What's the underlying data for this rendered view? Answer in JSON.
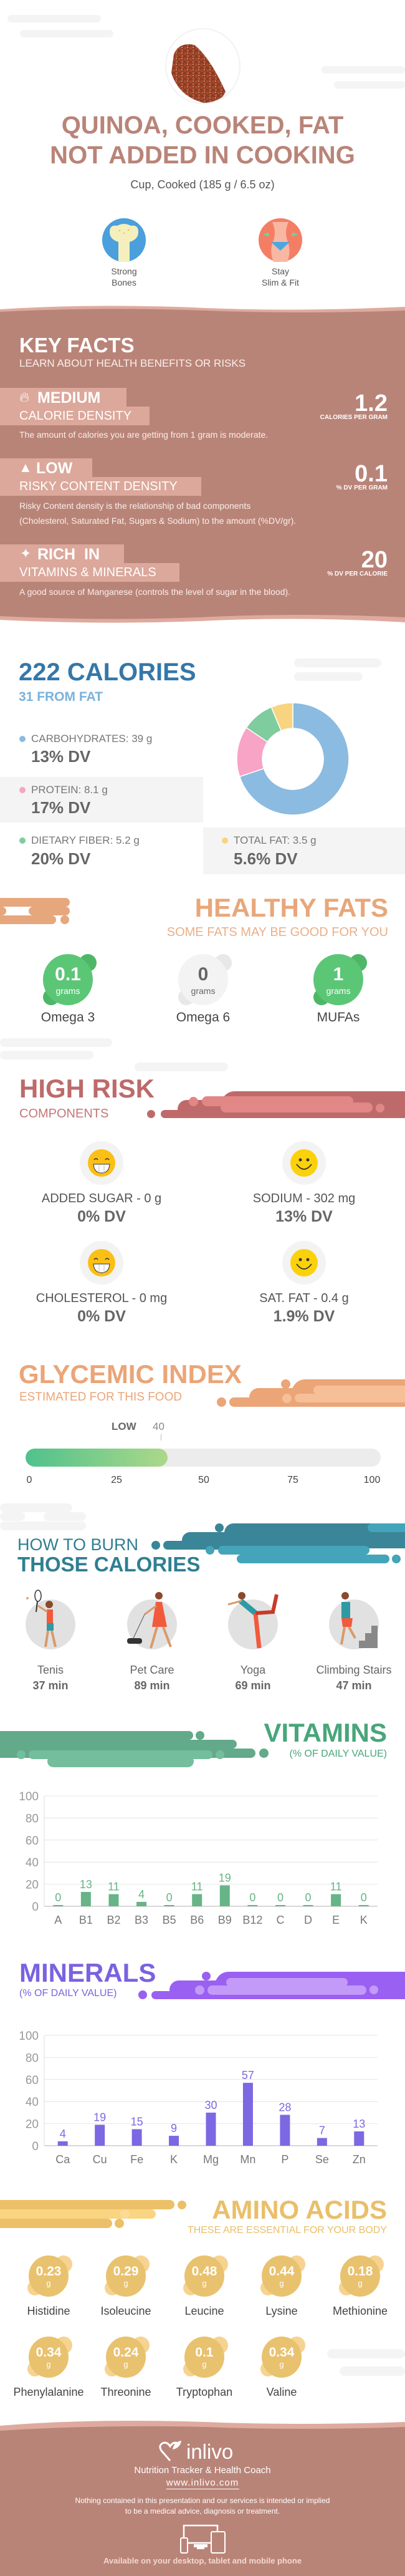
{
  "header": {
    "title_line1": "QUINOA, COOKED, FAT",
    "title_line2": "NOT ADDED IN COOKING",
    "serving": "Cup, Cooked (185 g / 6.5 oz)",
    "benefits": [
      {
        "icon": "bone-icon",
        "line1": "Strong",
        "line2": "Bones"
      },
      {
        "icon": "waist-icon",
        "line1": "Stay",
        "line2": "Slim & Fit"
      }
    ]
  },
  "key_facts": {
    "title": "KEY FACTS",
    "subtitle": "LEARN ABOUT HEALTH BENEFITS OR RISKS",
    "items": [
      {
        "icon": "flame-icon",
        "level": "MEDIUM",
        "label": "CALORIE DENSITY",
        "value": "1.2",
        "unit": "CALORIES PER GRAM",
        "desc": "The amount of calories you are getting from 1 gram is moderate."
      },
      {
        "icon": "warning-icon",
        "level": "LOW",
        "label": "RISKY CONTENT DENSITY",
        "value": "0.1",
        "unit": "% DV PER GRAM",
        "desc": "Risky Content density is the relationship of bad components",
        "desc2": "(Cholesterol, Saturated Fat, Sugars & Sodium) to the amount (%DV/gr)."
      },
      {
        "icon": "leaf-icon",
        "level": "RICH  IN",
        "label": "VITAMINS & MINERALS",
        "value": "20",
        "unit": "% DV PER CALORIE",
        "desc": "A good source of Manganese (controls the level of sugar in the blood)."
      }
    ]
  },
  "calories": {
    "title": "222 CALORIES",
    "subtitle": "31 FROM FAT",
    "macros": [
      {
        "label": "CARBOHYDRATES: 39 g",
        "dv": "13% DV",
        "color": "#8bbbe0"
      },
      {
        "label": "PROTEIN: 8.1 g",
        "dv": "17% DV",
        "color": "#f7a4c6"
      },
      {
        "label": "DIETARY FIBER: 5.2 g",
        "dv": "20% DV",
        "color": "#7fcc9e"
      },
      {
        "label": "TOTAL FAT: 3.5 g",
        "dv": "5.6% DV",
        "color": "#f8d480"
      }
    ]
  },
  "chart_data": [
    {
      "type": "pie",
      "categories": [
        "Carbohydrates",
        "Protein",
        "Dietary Fiber",
        "Total Fat"
      ],
      "values": [
        39,
        8.1,
        5.2,
        3.5
      ],
      "colors": [
        "#8bbbe0",
        "#f7a4c6",
        "#7fcc9e",
        "#f8d480"
      ]
    },
    {
      "type": "bar",
      "title": "VITAMINS",
      "subtitle": "(% OF DAILY VALUE)",
      "categories": [
        "A",
        "B1",
        "B2",
        "B3",
        "B5",
        "B6",
        "B9",
        "B12",
        "C",
        "D",
        "E",
        "K"
      ],
      "values": [
        0,
        13,
        11,
        4,
        0,
        11,
        19,
        0,
        0,
        0,
        11,
        0
      ],
      "yticks": [
        "0",
        "20",
        "40",
        "60",
        "80",
        "100"
      ],
      "ylim": [
        0,
        100
      ],
      "grid": true,
      "color": "#67b486"
    },
    {
      "type": "bar",
      "title": "MINERALS",
      "subtitle": "(% OF DAILY VALUE)",
      "categories": [
        "Ca",
        "Cu",
        "Fe",
        "K",
        "Mg",
        "Mn",
        "P",
        "Se",
        "Zn"
      ],
      "values": [
        4,
        19,
        15,
        9,
        30,
        57,
        28,
        7,
        13
      ],
      "yticks": [
        "0",
        "20",
        "40",
        "60",
        "80",
        "100"
      ],
      "ylim": [
        0,
        100
      ],
      "grid": true,
      "color": "#7c68e2"
    }
  ],
  "healthy_fats": {
    "title": "HEALTHY FATS",
    "subtitle": "SOME FATS MAY BE GOOD FOR YOU",
    "unit": "grams",
    "items": [
      {
        "value": "0.1",
        "label": "Omega 3",
        "active": true
      },
      {
        "value": "0",
        "label": "Omega 6",
        "active": false
      },
      {
        "value": "1",
        "label": "MUFAs",
        "active": true
      }
    ]
  },
  "high_risk": {
    "title": "HIGH RISK",
    "subtitle": "COMPONENTS",
    "items": [
      {
        "icon": "grin-icon",
        "label": "ADDED SUGAR - 0 g",
        "dv": "0% DV"
      },
      {
        "icon": "smile-icon",
        "label": "SODIUM - 302 mg",
        "dv": "13% DV"
      },
      {
        "icon": "grin-icon",
        "label": "CHOLESTEROL - 0 mg",
        "dv": "0% DV"
      },
      {
        "icon": "smile-icon",
        "label": "SAT. FAT - 0.4 g",
        "dv": "1.9% DV"
      }
    ]
  },
  "glycemic": {
    "title": "GLYCEMIC INDEX",
    "subtitle": "ESTIMATED FOR THIS FOOD",
    "level": "LOW",
    "value": "40",
    "percent": 40,
    "ticks": [
      "0",
      "25",
      "50",
      "75",
      "100"
    ]
  },
  "burn": {
    "title1": "HOW TO BURN",
    "title2": "THOSE CALORIES",
    "items": [
      {
        "icon": "tennis-icon",
        "label": "Tenis",
        "time": "37 min"
      },
      {
        "icon": "dog-walking-icon",
        "label": "Pet Care",
        "time": "89 min"
      },
      {
        "icon": "yoga-icon",
        "label": "Yoga",
        "time": "69 min"
      },
      {
        "icon": "stairs-icon",
        "label": "Climbing Stairs",
        "time": "47 min"
      }
    ]
  },
  "amino": {
    "title": "AMINO ACIDS",
    "subtitle": "THESE ARE ESSENTIAL FOR YOUR BODY",
    "unit": "g",
    "items": [
      {
        "value": "0.23",
        "label": "Histidine"
      },
      {
        "value": "0.29",
        "label": "Isoleucine"
      },
      {
        "value": "0.48",
        "label": "Leucine"
      },
      {
        "value": "0.44",
        "label": "Lysine"
      },
      {
        "value": "0.18",
        "label": "Methionine"
      },
      {
        "value": "0.34",
        "label": "Phenylalanine"
      },
      {
        "value": "0.24",
        "label": "Threonine"
      },
      {
        "value": "0.1",
        "label": "Tryptophan"
      },
      {
        "value": "0.34",
        "label": "Valine"
      }
    ]
  },
  "footer": {
    "brand": "inlivo",
    "tagline": "Nutrition Tracker & Health Coach",
    "url": "www.inlivo.com",
    "disclaimer1": "Nothing contained in this presentation and our services is intended or implied",
    "disclaimer2": "to be a medical advice, diagnosis or treatment.",
    "available": "Available on your desktop, tablet and mobile phone"
  }
}
